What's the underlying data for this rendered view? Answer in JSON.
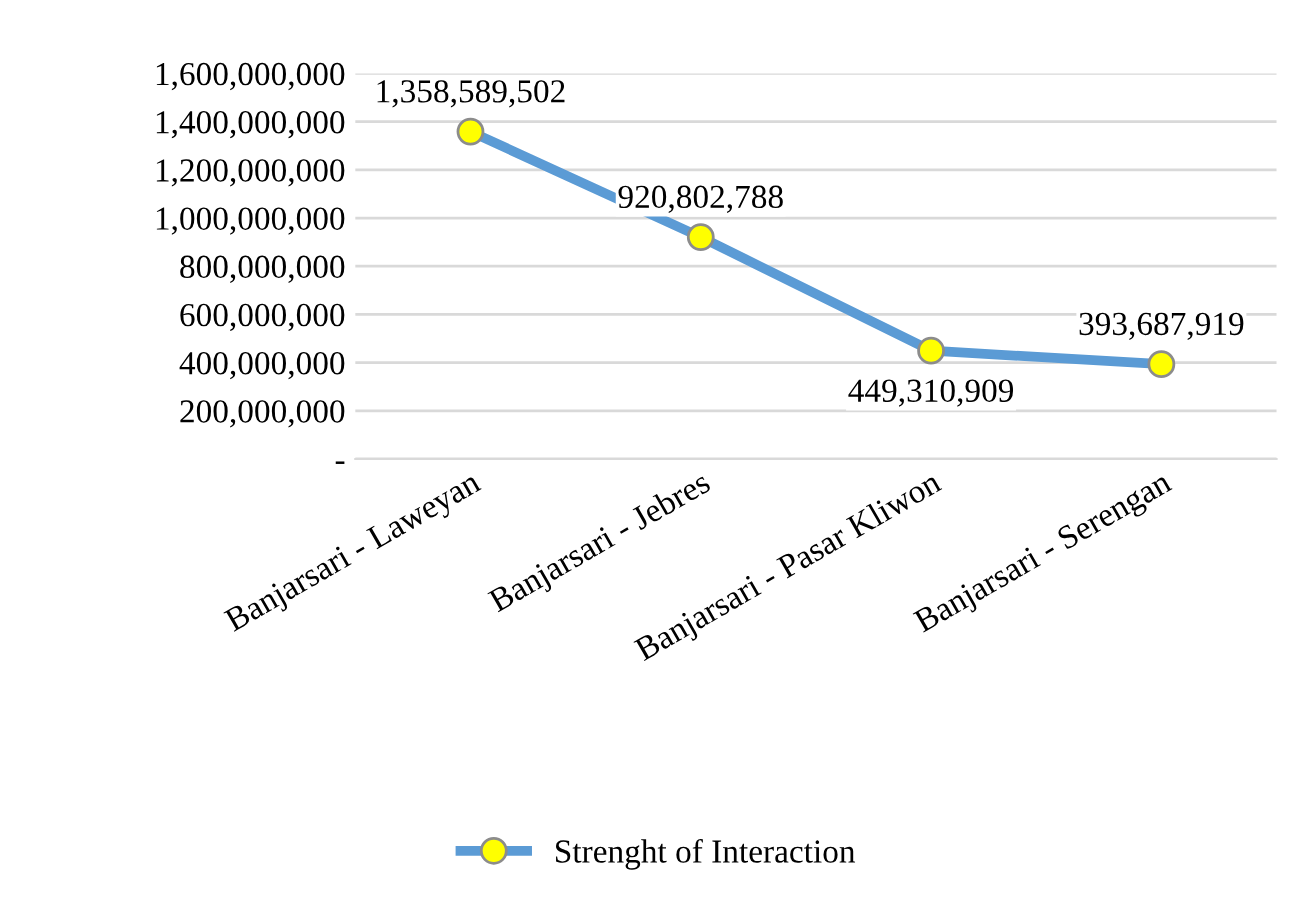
{
  "chart_data": {
    "type": "line",
    "categories": [
      "Banjarsari - Laweyan",
      "Banjarsari - Jebres",
      "Banjarsari - Pasar Kliwon",
      "Banjarsari - Serengan"
    ],
    "series": [
      {
        "name": "Strenght of Interaction",
        "color": "#5b9bd5",
        "values": [
          1358589502,
          920802788,
          449310909,
          393687919
        ],
        "value_labels": [
          "1,358,589,502",
          "920,802,788",
          "449,310,909",
          "393,687,919"
        ]
      }
    ],
    "ylim": [
      0,
      1600000000
    ],
    "yticks": [
      {
        "value": 0,
        "label": "-"
      },
      {
        "value": 200000000,
        "label": "200,000,000"
      },
      {
        "value": 400000000,
        "label": "400,000,000"
      },
      {
        "value": 600000000,
        "label": "600,000,000"
      },
      {
        "value": 800000000,
        "label": "800,000,000"
      },
      {
        "value": 1000000000,
        "label": "1,000,000,000"
      },
      {
        "value": 1200000000,
        "label": "1,200,000,000"
      },
      {
        "value": 1400000000,
        "label": "1,400,000,000"
      },
      {
        "value": 1600000000,
        "label": "1,600,000,000"
      }
    ],
    "grid": "y",
    "legend": "bottom",
    "marker": "circle",
    "line_style": "solid"
  }
}
